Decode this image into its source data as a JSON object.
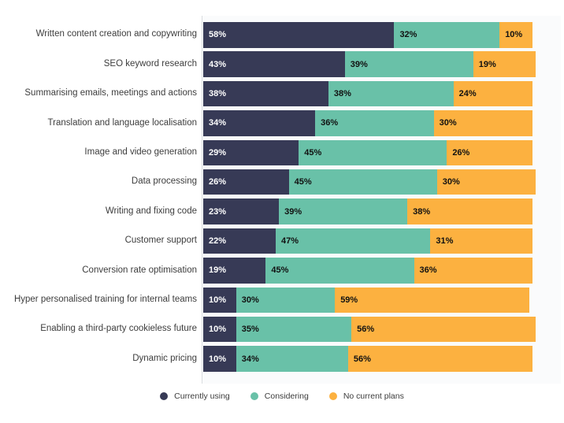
{
  "chart_data": {
    "type": "bar",
    "orientation": "horizontal",
    "stacked": true,
    "title": "",
    "xlabel": "",
    "ylabel": "",
    "xlim": [
      0,
      100
    ],
    "grid": false,
    "data_labels": true,
    "value_format": "percent",
    "legend_position": "bottom",
    "categories": [
      "Written content creation and copywriting",
      "SEO keyword research",
      "Summarising emails, meetings and actions",
      "Translation and language localisation",
      "Image and video generation",
      "Data processing",
      "Writing and fixing code",
      "Customer support",
      "Conversion rate optimisation",
      "Hyper personalised training for internal teams",
      "Enabling a third-party cookieless future",
      "Dynamic pricing"
    ],
    "series": [
      {
        "name": "Currently using",
        "color": "#373a56",
        "label_color": "#ffffff",
        "values": [
          58,
          43,
          38,
          34,
          29,
          26,
          23,
          22,
          19,
          10,
          10,
          10
        ]
      },
      {
        "name": "Considering",
        "color": "#69c1a8",
        "label_color": "#111111",
        "values": [
          32,
          39,
          38,
          36,
          45,
          45,
          39,
          47,
          45,
          30,
          35,
          34
        ]
      },
      {
        "name": "No current plans",
        "color": "#fcb140",
        "label_color": "#111111",
        "values": [
          10,
          19,
          24,
          30,
          26,
          30,
          38,
          31,
          36,
          59,
          56,
          56
        ]
      }
    ]
  },
  "colors": {
    "category_label_text": "#3d3d3d",
    "plot_background": "#fafbfc",
    "axis_line": "#d9dcdf",
    "legend_text": "#3c3c3c"
  },
  "legend": {
    "items": [
      "Currently using",
      "Considering",
      "No current plans"
    ]
  }
}
